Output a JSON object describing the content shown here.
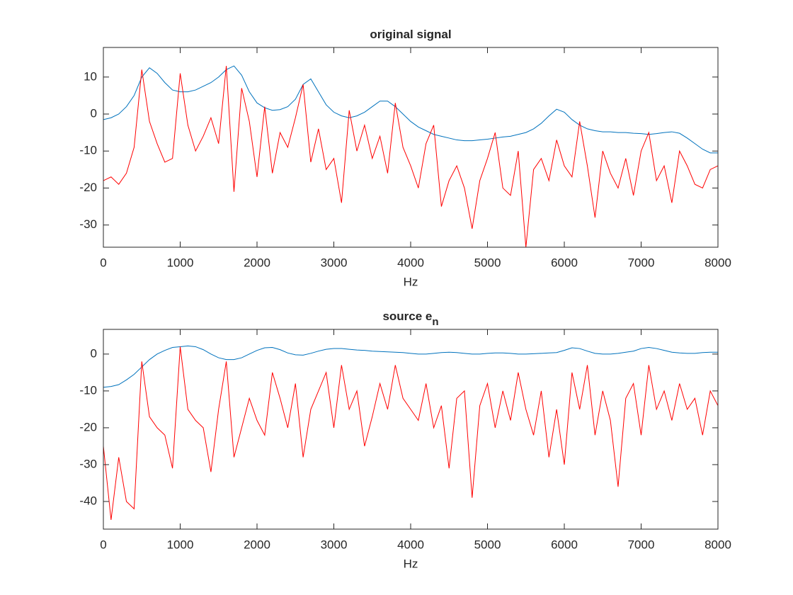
{
  "chart_data": [
    {
      "type": "line",
      "title": "original signal",
      "xlabel": "Hz",
      "x": [
        0,
        100,
        200,
        300,
        400,
        500,
        600,
        700,
        800,
        900,
        1000,
        1100,
        1200,
        1300,
        1400,
        1500,
        1600,
        1700,
        1800,
        1900,
        2000,
        2100,
        2200,
        2300,
        2400,
        2500,
        2600,
        2700,
        2800,
        2900,
        3000,
        3100,
        3200,
        3300,
        3400,
        3500,
        3600,
        3700,
        3800,
        3900,
        4000,
        4100,
        4200,
        4300,
        4400,
        4500,
        4600,
        4700,
        4800,
        4900,
        5000,
        5100,
        5200,
        5300,
        5400,
        5500,
        5600,
        5700,
        5800,
        5900,
        6000,
        6100,
        6200,
        6300,
        6400,
        6500,
        6600,
        6700,
        6800,
        6900,
        7000,
        7100,
        7200,
        7300,
        7400,
        7500,
        7600,
        7700,
        7800,
        7900,
        8000
      ],
      "series": [
        {
          "color": "#0072bd",
          "values": [
            -1.5,
            -1,
            0,
            2,
            5,
            10,
            12.5,
            11,
            8.5,
            6.5,
            6,
            6,
            6.5,
            7.5,
            8.5,
            10,
            12,
            13,
            10.5,
            6,
            3,
            1.7,
            1,
            1.2,
            2,
            4,
            8,
            9.5,
            6,
            2.5,
            0.5,
            -0.5,
            -1,
            -0.5,
            0.5,
            2,
            3.5,
            3.5,
            2,
            0,
            -2,
            -3.5,
            -4.5,
            -5.5,
            -6,
            -6.5,
            -7,
            -7.2,
            -7.2,
            -7,
            -6.8,
            -6.5,
            -6.2,
            -6,
            -5.5,
            -5,
            -4,
            -2.5,
            -0.5,
            1.3,
            0.5,
            -1.5,
            -3,
            -4,
            -4.5,
            -4.8,
            -4.8,
            -5,
            -5,
            -5.2,
            -5.3,
            -5.5,
            -5.3,
            -5,
            -4.8,
            -5.2,
            -6.5,
            -8,
            -9.5,
            -10.5,
            -10.5
          ]
        },
        {
          "color": "#ff0000",
          "values": [
            -18,
            -17,
            -19,
            -16,
            -9,
            12,
            -2,
            -8,
            -13,
            -12,
            11,
            -3,
            -10,
            -6,
            -1,
            -8,
            13,
            -21,
            7,
            -2,
            -17,
            2,
            -16,
            -5,
            -9,
            -1,
            8,
            -13,
            -4,
            -15,
            -12,
            -24,
            1,
            -10,
            -3,
            -12,
            -6,
            -16,
            3,
            -9,
            -14,
            -20,
            -8,
            -3,
            -25,
            -18,
            -14,
            -20,
            -31,
            -18,
            -12,
            -5,
            -20,
            -22,
            -10,
            -36,
            -15,
            -12,
            -18,
            -7,
            -14,
            -17,
            -2,
            -14,
            -28,
            -10,
            -16,
            -20,
            -12,
            -22,
            -10,
            -5,
            -18,
            -14,
            -24,
            -10,
            -14,
            -19,
            -20,
            -15,
            -14
          ]
        }
      ],
      "xlim": [
        0,
        8000
      ],
      "xticks": [
        0,
        1000,
        2000,
        3000,
        4000,
        5000,
        6000,
        7000,
        8000
      ],
      "ylim": [
        -36,
        18
      ],
      "yticks": [
        -30,
        -20,
        -10,
        0,
        10
      ]
    },
    {
      "type": "line",
      "title": "source e",
      "title_sub": "n",
      "xlabel": "Hz",
      "x": [
        0,
        100,
        200,
        300,
        400,
        500,
        600,
        700,
        800,
        900,
        1000,
        1100,
        1200,
        1300,
        1400,
        1500,
        1600,
        1700,
        1800,
        1900,
        2000,
        2100,
        2200,
        2300,
        2400,
        2500,
        2600,
        2700,
        2800,
        2900,
        3000,
        3100,
        3200,
        3300,
        3400,
        3500,
        3600,
        3700,
        3800,
        3900,
        4000,
        4100,
        4200,
        4300,
        4400,
        4500,
        4600,
        4700,
        4800,
        4900,
        5000,
        5100,
        5200,
        5300,
        5400,
        5500,
        5600,
        5700,
        5800,
        5900,
        6000,
        6100,
        6200,
        6300,
        6400,
        6500,
        6600,
        6700,
        6800,
        6900,
        7000,
        7100,
        7200,
        7300,
        7400,
        7500,
        7600,
        7700,
        7800,
        7900,
        8000
      ],
      "series": [
        {
          "color": "#0072bd",
          "values": [
            -9,
            -8.8,
            -8.3,
            -7,
            -5.5,
            -3.5,
            -1.5,
            0,
            1,
            1.8,
            2,
            2.2,
            2,
            1.2,
            0,
            -1,
            -1.5,
            -1.5,
            -1,
            0,
            1,
            1.7,
            1.8,
            1.2,
            0.3,
            -0.2,
            -0.3,
            0.2,
            0.8,
            1.3,
            1.5,
            1.5,
            1.3,
            1.1,
            1,
            0.8,
            0.7,
            0.6,
            0.5,
            0.4,
            0.2,
            0,
            0,
            0.2,
            0.4,
            0.5,
            0.4,
            0.2,
            0,
            0,
            0.2,
            0.3,
            0.3,
            0.2,
            0,
            0,
            0.1,
            0.2,
            0.3,
            0.4,
            1,
            1.7,
            1.5,
            0.8,
            0.2,
            0,
            0,
            0.2,
            0.5,
            0.8,
            1.5,
            1.8,
            1.5,
            1,
            0.5,
            0.3,
            0.2,
            0.2,
            0.4,
            0.5,
            0.5
          ]
        },
        {
          "color": "#ff0000",
          "values": [
            -25,
            -45,
            -28,
            -40,
            -42,
            -2,
            -17,
            -20,
            -22,
            -31,
            2,
            -15,
            -18,
            -20,
            -32,
            -15,
            -2,
            -28,
            -20,
            -12,
            -18,
            -22,
            -5,
            -12,
            -20,
            -8,
            -28,
            -15,
            -10,
            -5,
            -20,
            -3,
            -15,
            -10,
            -25,
            -17,
            -8,
            -15,
            -3,
            -12,
            -15,
            -18,
            -8,
            -20,
            -14,
            -31,
            -12,
            -10,
            -39,
            -14,
            -8,
            -20,
            -10,
            -18,
            -5,
            -15,
            -22,
            -10,
            -28,
            -15,
            -30,
            -5,
            -15,
            -3,
            -22,
            -10,
            -18,
            -36,
            -12,
            -8,
            -22,
            -3,
            -15,
            -10,
            -18,
            -8,
            -15,
            -12,
            -22,
            -10,
            -14
          ]
        }
      ],
      "xlim": [
        0,
        8000
      ],
      "xticks": [
        0,
        1000,
        2000,
        3000,
        4000,
        5000,
        6000,
        7000,
        8000
      ],
      "ylim": [
        -47.5,
        6.7
      ],
      "yticks": [
        -40,
        -30,
        -20,
        -10,
        0
      ]
    }
  ]
}
